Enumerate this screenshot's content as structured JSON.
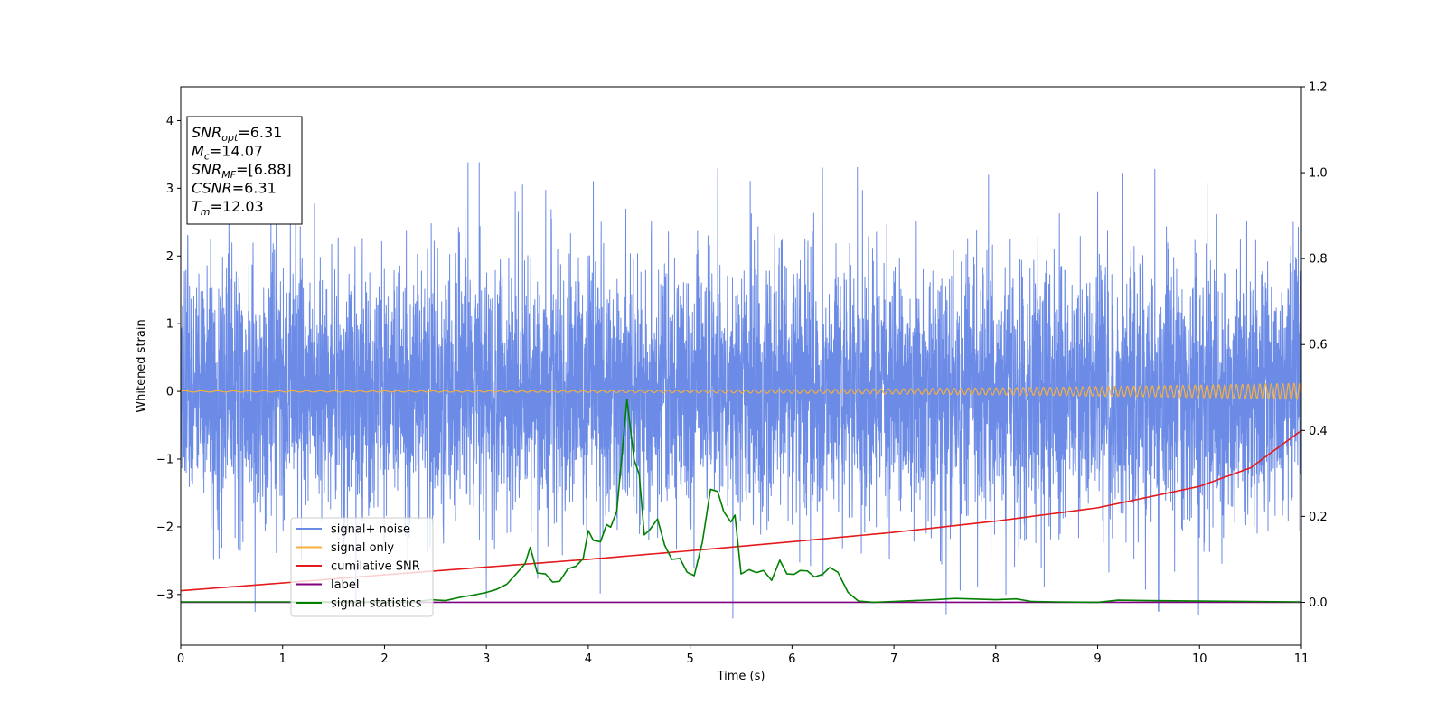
{
  "chart_data": {
    "type": "line",
    "xlabel": "Time (s)",
    "ylabel": "Whitened strain",
    "xlim": [
      0,
      11
    ],
    "ylim": [
      -3.75,
      4.5
    ],
    "y2lim": [
      -0.1,
      1.2
    ],
    "xticks": [
      "0",
      "1",
      "2",
      "3",
      "4",
      "5",
      "6",
      "7",
      "8",
      "9",
      "10",
      "11"
    ],
    "yticks": [
      "−3",
      "−2",
      "−1",
      "0",
      "1",
      "2",
      "3",
      "4"
    ],
    "y2ticks": [
      "0.0",
      "0.2",
      "0.4",
      "0.6",
      "0.8",
      "1.0",
      "1.2"
    ],
    "grid": false,
    "legend_position": "lower-left",
    "series": [
      {
        "name": "signal+ noise",
        "color": "#6b8be6",
        "axis": "left",
        "kind": "noise",
        "sigma": 0.95,
        "duration": 11,
        "spikes": [
          {
            "t": 0.73,
            "v": -3.25
          },
          {
            "t": 2.82,
            "v": 3.38
          },
          {
            "t": 2.93,
            "v": 3.38
          },
          {
            "t": 4.05,
            "v": 3.1
          },
          {
            "t": 5.27,
            "v": 3.3
          },
          {
            "t": 5.42,
            "v": -3.35
          },
          {
            "t": 6.3,
            "v": 3.3
          },
          {
            "t": 8.1,
            "v": -3.0
          },
          {
            "t": 9.0,
            "v": 2.95
          },
          {
            "t": 9.56,
            "v": 3.28
          },
          {
            "t": 9.6,
            "v": -3.25
          },
          {
            "t": 9.99,
            "v": -3.3
          },
          {
            "t": 10.92,
            "v": 2.5
          },
          {
            "t": 1.72,
            "v": -3.1
          },
          {
            "t": 3.0,
            "v": -3.05
          }
        ]
      },
      {
        "name": "signal only",
        "color": "#f5b041",
        "axis": "left",
        "kind": "chirp",
        "amp_start": 0.01,
        "amp_end": 0.12,
        "duration": 11
      },
      {
        "name": "cumilative SNR",
        "color": "#e41a1c",
        "axis": "right",
        "x": [
          0,
          1,
          2,
          3,
          4,
          5,
          6,
          7,
          8,
          9,
          10,
          10.5,
          11
        ],
        "y": [
          0.027,
          0.045,
          0.064,
          0.082,
          0.1,
          0.12,
          0.141,
          0.163,
          0.189,
          0.22,
          0.27,
          0.313,
          0.4
        ]
      },
      {
        "name": "label",
        "color": "#800080",
        "axis": "right",
        "x": [
          0,
          11
        ],
        "y": [
          0.0,
          0.0
        ]
      },
      {
        "name": "signal statistics",
        "color": "#008000",
        "axis": "right",
        "x": [
          0,
          2.3,
          2.45,
          2.6,
          2.75,
          2.9,
          3.0,
          3.1,
          3.2,
          3.3,
          3.38,
          3.43,
          3.5,
          3.58,
          3.65,
          3.72,
          3.8,
          3.88,
          3.95,
          4.0,
          4.05,
          4.12,
          4.18,
          4.22,
          4.28,
          4.33,
          4.38,
          4.45,
          4.5,
          4.55,
          4.6,
          4.68,
          4.75,
          4.82,
          4.9,
          4.97,
          5.04,
          5.12,
          5.2,
          5.27,
          5.33,
          5.4,
          5.44,
          5.5,
          5.58,
          5.65,
          5.72,
          5.8,
          5.88,
          5.95,
          6.02,
          6.08,
          6.15,
          6.22,
          6.3,
          6.37,
          6.45,
          6.55,
          6.65,
          6.8,
          7.0,
          7.4,
          7.6,
          8.0,
          8.2,
          8.35,
          8.6,
          9.0,
          9.2,
          9.5,
          10.0,
          11.0
        ],
        "y": [
          0.001,
          0.001,
          0.006,
          0.004,
          0.012,
          0.018,
          0.023,
          0.03,
          0.042,
          0.068,
          0.09,
          0.128,
          0.068,
          0.066,
          0.047,
          0.049,
          0.078,
          0.084,
          0.102,
          0.167,
          0.144,
          0.141,
          0.181,
          0.175,
          0.212,
          0.342,
          0.472,
          0.332,
          0.298,
          0.157,
          0.168,
          0.194,
          0.133,
          0.1,
          0.102,
          0.07,
          0.062,
          0.14,
          0.263,
          0.258,
          0.211,
          0.187,
          0.203,
          0.066,
          0.076,
          0.069,
          0.074,
          0.051,
          0.098,
          0.066,
          0.065,
          0.074,
          0.073,
          0.059,
          0.065,
          0.081,
          0.07,
          0.023,
          0.003,
          0.0,
          0.002,
          0.006,
          0.009,
          0.006,
          0.008,
          0.002,
          0.001,
          0.0,
          0.005,
          0.004,
          0.003,
          0.001
        ]
      }
    ],
    "info_box": [
      {
        "label": "SNR",
        "sub": "opt",
        "value": "=6.31"
      },
      {
        "label": "M",
        "sub": "c",
        "value": "=14.07"
      },
      {
        "label": "SNR",
        "sub": "MF",
        "value": "=[6.88]"
      },
      {
        "label": "CSNR",
        "sub": "",
        "value": "=6.31"
      },
      {
        "label": "T",
        "sub": "m",
        "value": "=12.03"
      }
    ]
  }
}
